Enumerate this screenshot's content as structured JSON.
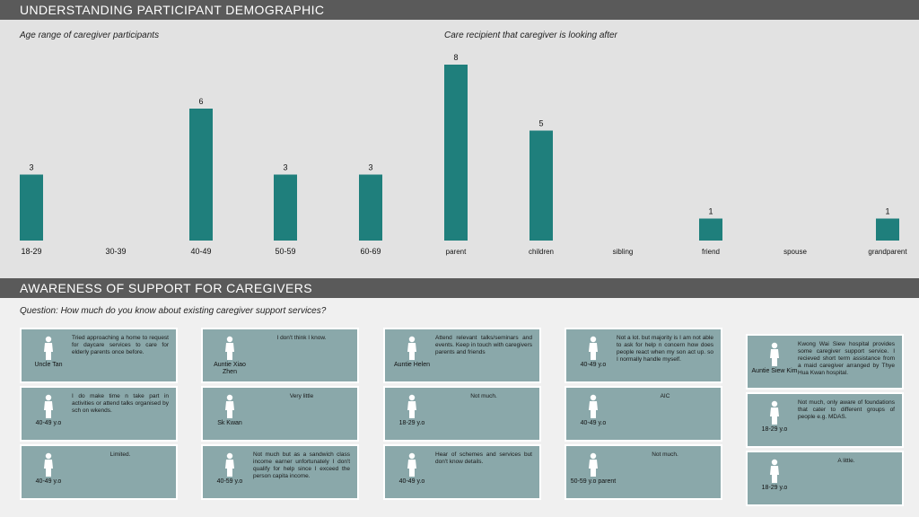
{
  "section1": {
    "title": "UNDERSTANDING PARTICIPANT DEMOGRAPHIC"
  },
  "section2": {
    "title": "AWARENESS OF SUPPORT FOR CAREGIVERS",
    "question": "Question: How much do you know about existing caregiver support services?"
  },
  "chart_data": [
    {
      "type": "bar",
      "title": "Age range of caregiver participants",
      "categories": [
        "18-29",
        "30-39",
        "40-49",
        "50-59",
        "60-69"
      ],
      "values": [
        3,
        0,
        6,
        3,
        3
      ],
      "ylim": [
        0,
        6
      ]
    },
    {
      "type": "bar",
      "title": "Care recipient that caregiver is looking after",
      "categories": [
        "parent",
        "children",
        "sibling",
        "friend",
        "spouse",
        "grandparent"
      ],
      "values": [
        8,
        5,
        0,
        1,
        0,
        1
      ],
      "ylim": [
        0,
        8
      ]
    }
  ],
  "colors": {
    "bar": "#1f7f7c",
    "card": "#8aa8aa",
    "banner": "#5a5a5a"
  },
  "cards": [
    {
      "who": "Uncle Tan",
      "text": "Tried approaching a home to request for daycare services to care for elderly parents once before."
    },
    {
      "who": "40-49 y.o",
      "text": "I do make time n take part in activities or attend talks organised by sch on wkends."
    },
    {
      "who": "40-49 y.o",
      "text": "Limited."
    },
    {
      "who": "Auntie Xiao Zhen",
      "text": "I don't think I know."
    },
    {
      "who": "Sk Kwan",
      "text": "Very little"
    },
    {
      "who": "40-59 y.o",
      "text": "Not much but as a sandwich class income earner unfortunately I don't qualify for help since I exceed the person capita income."
    },
    {
      "who": "Auntie Helen",
      "text": "Attend relevant talks/seminars and events. Keep in touch with caregivers parents and friends"
    },
    {
      "who": "18-29 y.o",
      "text": "Not much."
    },
    {
      "who": "40-49 y.o",
      "text": "Hear of schemes and services but don't know details."
    },
    {
      "who": "40-49 y.o",
      "text": "Not a lot. but majority is I am not able to ask for help n concern how does people react when my son act up. so I normally handle myself."
    },
    {
      "who": "40-49 y.o",
      "text": "AIC"
    },
    {
      "who": "50-59 y.o parent",
      "text": "Not much."
    },
    {
      "who": "Auntie Siew Kim",
      "text": "Kwong Wai Siew hospital provides some caregiver support service. I recieved short term assistance from a maid caregiver arranged by Thye Hua Kwan hospital."
    },
    {
      "who": "18-29 y.o",
      "text": "Not much, only aware of foundations that cater to different groups of people e.g. MDAS."
    },
    {
      "who": "18-29 y.o",
      "text": "A little."
    }
  ]
}
